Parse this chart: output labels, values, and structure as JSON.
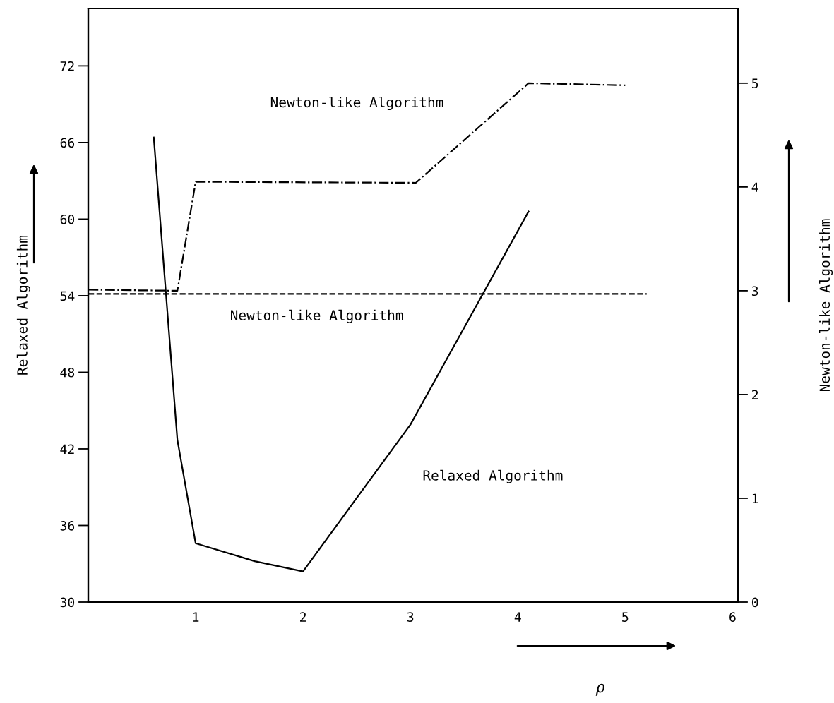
{
  "chart_data": {
    "type": "line",
    "xlabel": "ρ",
    "ylabel": "Relaxed Algorithm",
    "y2label": "Newton-like Algorithm",
    "xlim": [
      0,
      6.05
    ],
    "xticks": [
      1,
      2,
      3,
      4,
      5,
      6
    ],
    "ylim": [
      30,
      76.5
    ],
    "yticks": [
      30,
      36,
      42,
      48,
      54,
      60,
      66,
      72
    ],
    "y2lim": [
      0,
      5.72
    ],
    "y2ticks": [
      0,
      1,
      2,
      3,
      4,
      5
    ],
    "grid": false,
    "marker": "none",
    "series": [
      {
        "name": "Relaxed Algorithm",
        "color": "#000000",
        "line_style": "solid",
        "x": [
          0.61,
          0.83,
          1.0,
          1.55,
          2.0,
          3.0,
          4.1
        ],
        "values": [
          66.4,
          42.7,
          34.6,
          33.2,
          32.4,
          43.9,
          60.6
        ]
      },
      {
        "name": "Newton-like Algorithm",
        "color": "#000000",
        "line_style": "dashdot",
        "axis": "y2",
        "x": [
          0.0,
          0.83,
          1.0,
          3.05,
          4.1,
          5.0
        ],
        "values": [
          3.01,
          3.0,
          4.05,
          4.04,
          5.0,
          4.98
        ]
      },
      {
        "name": "Newton-like Algorithm",
        "color": "#000000",
        "line_style": "dashed",
        "axis": "y2",
        "x": [
          0.0,
          5.2
        ],
        "values": [
          2.97,
          2.97
        ]
      }
    ]
  }
}
